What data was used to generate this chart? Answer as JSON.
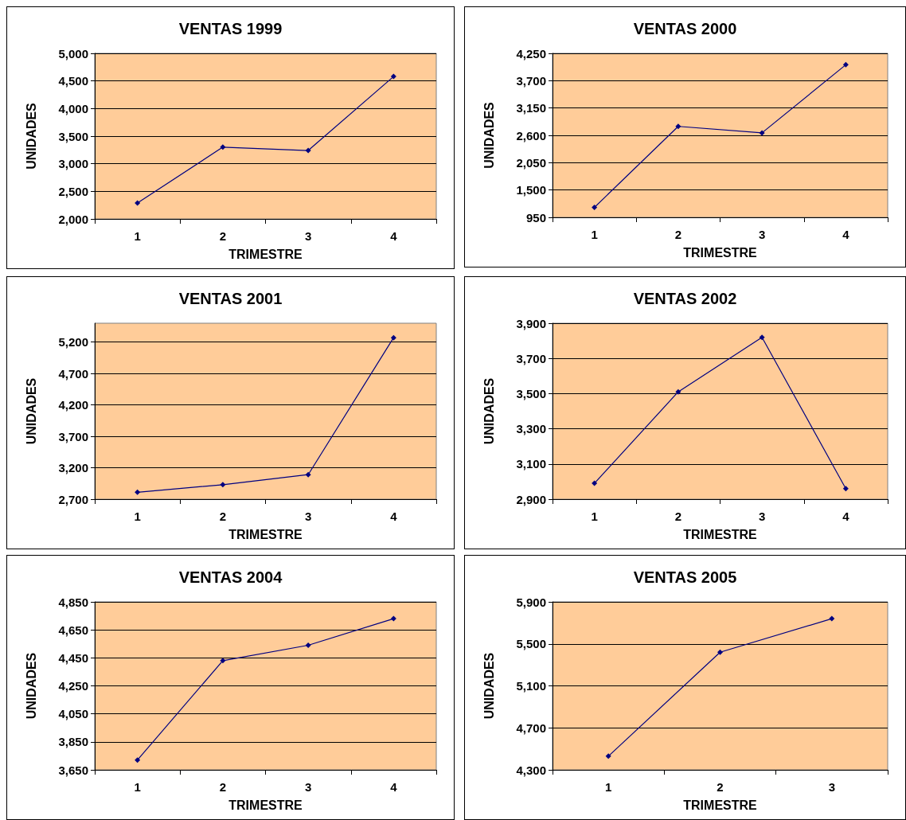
{
  "chart_data": [
    {
      "type": "line",
      "title": "VENTAS 1999",
      "xlabel": "TRIMESTRE",
      "ylabel": "UNIDADES",
      "categories": [
        "1",
        "2",
        "3",
        "4"
      ],
      "series": [
        {
          "color": "#000080",
          "values": [
            2290,
            3300,
            3240,
            4580
          ]
        }
      ],
      "ylim": [
        2000,
        5000
      ],
      "yticks": [
        {
          "value": 2000,
          "label": "2,000"
        },
        {
          "value": 2500,
          "label": "2,500"
        },
        {
          "value": 3000,
          "label": "3,000"
        },
        {
          "value": 3500,
          "label": "3,500"
        },
        {
          "value": 4000,
          "label": "4,000"
        },
        {
          "value": 4500,
          "label": "4,500"
        },
        {
          "value": 5000,
          "label": "5,000"
        }
      ],
      "grid": "y",
      "marker": "diamond"
    },
    {
      "type": "line",
      "title": "VENTAS 2000",
      "xlabel": "TRIMESTRE",
      "ylabel": "UNIDADES",
      "categories": [
        "1",
        "2",
        "3",
        "4"
      ],
      "series": [
        {
          "color": "#000080",
          "values": [
            1150,
            2780,
            2650,
            4020
          ]
        }
      ],
      "ylim": [
        950,
        4250
      ],
      "yticks": [
        950,
        {
          "value": 1500,
          "label": "1,500"
        },
        {
          "value": 2050,
          "label": "2,050"
        },
        {
          "value": 2600,
          "label": "2,600"
        },
        {
          "value": 3150,
          "label": "3,150"
        },
        {
          "value": 3700,
          "label": "3,700"
        },
        {
          "value": 4250,
          "label": "4,250"
        }
      ],
      "grid": "y",
      "marker": "diamond"
    },
    {
      "type": "line",
      "title": "VENTAS 2001",
      "xlabel": "TRIMESTRE",
      "ylabel": "UNIDADES",
      "categories": [
        "1",
        "2",
        "3",
        "4"
      ],
      "series": [
        {
          "color": "#000080",
          "values": [
            2810,
            2930,
            3090,
            5270
          ]
        }
      ],
      "ylim": [
        2700,
        5500
      ],
      "yticks": [
        {
          "value": 2700,
          "label": "2,700"
        },
        {
          "value": 3200,
          "label": "3,200"
        },
        {
          "value": 3700,
          "label": "3,700"
        },
        {
          "value": 4200,
          "label": "4,200"
        },
        {
          "value": 4700,
          "label": "4,700"
        },
        {
          "value": 5200,
          "label": "5,200"
        }
      ],
      "grid": "y",
      "marker": "diamond"
    },
    {
      "type": "line",
      "title": "VENTAS 2002",
      "xlabel": "TRIMESTRE",
      "ylabel": "UNIDADES",
      "categories": [
        "1",
        "2",
        "3",
        "4"
      ],
      "series": [
        {
          "color": "#000080",
          "values": [
            2990,
            3510,
            3820,
            2960
          ]
        }
      ],
      "ylim": [
        2900,
        3900
      ],
      "yticks": [
        {
          "value": 2900,
          "label": "2,900"
        },
        {
          "value": 3100,
          "label": "3,100"
        },
        {
          "value": 3300,
          "label": "3,300"
        },
        {
          "value": 3500,
          "label": "3,500"
        },
        {
          "value": 3700,
          "label": "3,700"
        },
        {
          "value": 3900,
          "label": "3,900"
        }
      ],
      "grid": "y",
      "marker": "diamond"
    },
    {
      "type": "line",
      "title": "VENTAS 2004",
      "xlabel": "TRIMESTRE",
      "ylabel": "UNIDADES",
      "categories": [
        "1",
        "2",
        "3",
        "4"
      ],
      "series": [
        {
          "color": "#000080",
          "values": [
            3720,
            4430,
            4540,
            4730
          ]
        }
      ],
      "ylim": [
        3650,
        4850
      ],
      "yticks": [
        {
          "value": 3650,
          "label": "3,650"
        },
        {
          "value": 3850,
          "label": "3,850"
        },
        {
          "value": 4050,
          "label": "4,050"
        },
        {
          "value": 4250,
          "label": "4,250"
        },
        {
          "value": 4450,
          "label": "4,450"
        },
        {
          "value": 4650,
          "label": "4,650"
        },
        {
          "value": 4850,
          "label": "4,850"
        }
      ],
      "grid": "y",
      "marker": "diamond"
    },
    {
      "type": "line",
      "title": "VENTAS 2005",
      "xlabel": "TRIMESTRE",
      "ylabel": "UNIDADES",
      "categories": [
        "1",
        "2",
        "3"
      ],
      "series": [
        {
          "color": "#000080",
          "values": [
            4430,
            5420,
            5740
          ]
        }
      ],
      "ylim": [
        4300,
        5900
      ],
      "yticks": [
        {
          "value": 4300,
          "label": "4,300"
        },
        {
          "value": 4700,
          "label": "4,700"
        },
        {
          "value": 5100,
          "label": "5,100"
        },
        {
          "value": 5500,
          "label": "5,500"
        },
        {
          "value": 5900,
          "label": "5,900"
        }
      ],
      "grid": "y",
      "marker": "diamond"
    }
  ]
}
